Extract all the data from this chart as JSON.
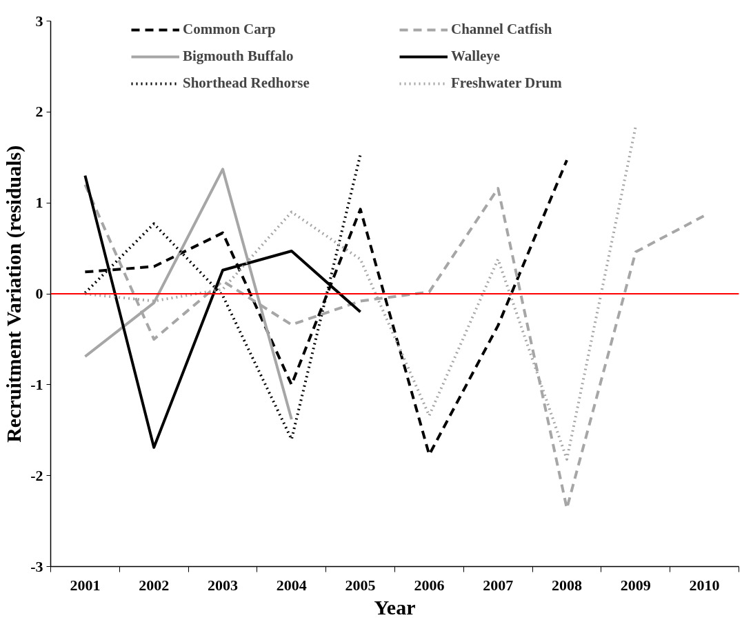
{
  "chart_data": {
    "type": "line",
    "xlabel": "Year",
    "ylabel": "Recruitment Variation (residuals)",
    "categories": [
      "2001",
      "2002",
      "2003",
      "2004",
      "2005",
      "2006",
      "2007",
      "2008",
      "2009",
      "2010"
    ],
    "series": [
      {
        "name": "Common Carp",
        "color": "#000000",
        "line_style": "dashed",
        "values": [
          0.24,
          0.3,
          0.67,
          -1.0,
          0.93,
          -1.77,
          -0.35,
          1.47,
          null,
          null
        ]
      },
      {
        "name": "Bigmouth Buffalo",
        "color": "#a6a6a6",
        "line_style": "solid",
        "values": [
          -0.69,
          -0.1,
          1.37,
          -1.38,
          null,
          null,
          null,
          null,
          null,
          null
        ]
      },
      {
        "name": "Shorthead Redhorse",
        "color": "#000000",
        "line_style": "dotted",
        "values": [
          0.01,
          0.77,
          -0.02,
          -1.6,
          1.53,
          null,
          null,
          null,
          null,
          null
        ]
      },
      {
        "name": "Channel Catfish",
        "color": "#a6a6a6",
        "line_style": "dashed",
        "values": [
          1.2,
          -0.5,
          0.14,
          -0.34,
          -0.08,
          0.02,
          1.16,
          -2.36,
          0.46,
          0.86
        ]
      },
      {
        "name": "Walleye",
        "color": "#000000",
        "line_style": "solid",
        "values": [
          1.3,
          -1.69,
          0.26,
          0.47,
          -0.2,
          null,
          null,
          null,
          null,
          null
        ]
      },
      {
        "name": "Freshwater Drum",
        "color": "#a6a6a6",
        "line_style": "dotted",
        "values": [
          0.0,
          -0.08,
          0.05,
          0.9,
          0.38,
          -1.34,
          0.38,
          -1.82,
          1.84,
          null
        ]
      }
    ],
    "ylim": [
      -3,
      3
    ],
    "yticks": [
      -3,
      -2,
      -1,
      0,
      1,
      2,
      3
    ],
    "ref_lines": [
      {
        "axis": "y",
        "value": 0,
        "color": "#ff0000",
        "line_style": "solid"
      }
    ],
    "grid": false,
    "legend": "top",
    "marker": "none"
  }
}
